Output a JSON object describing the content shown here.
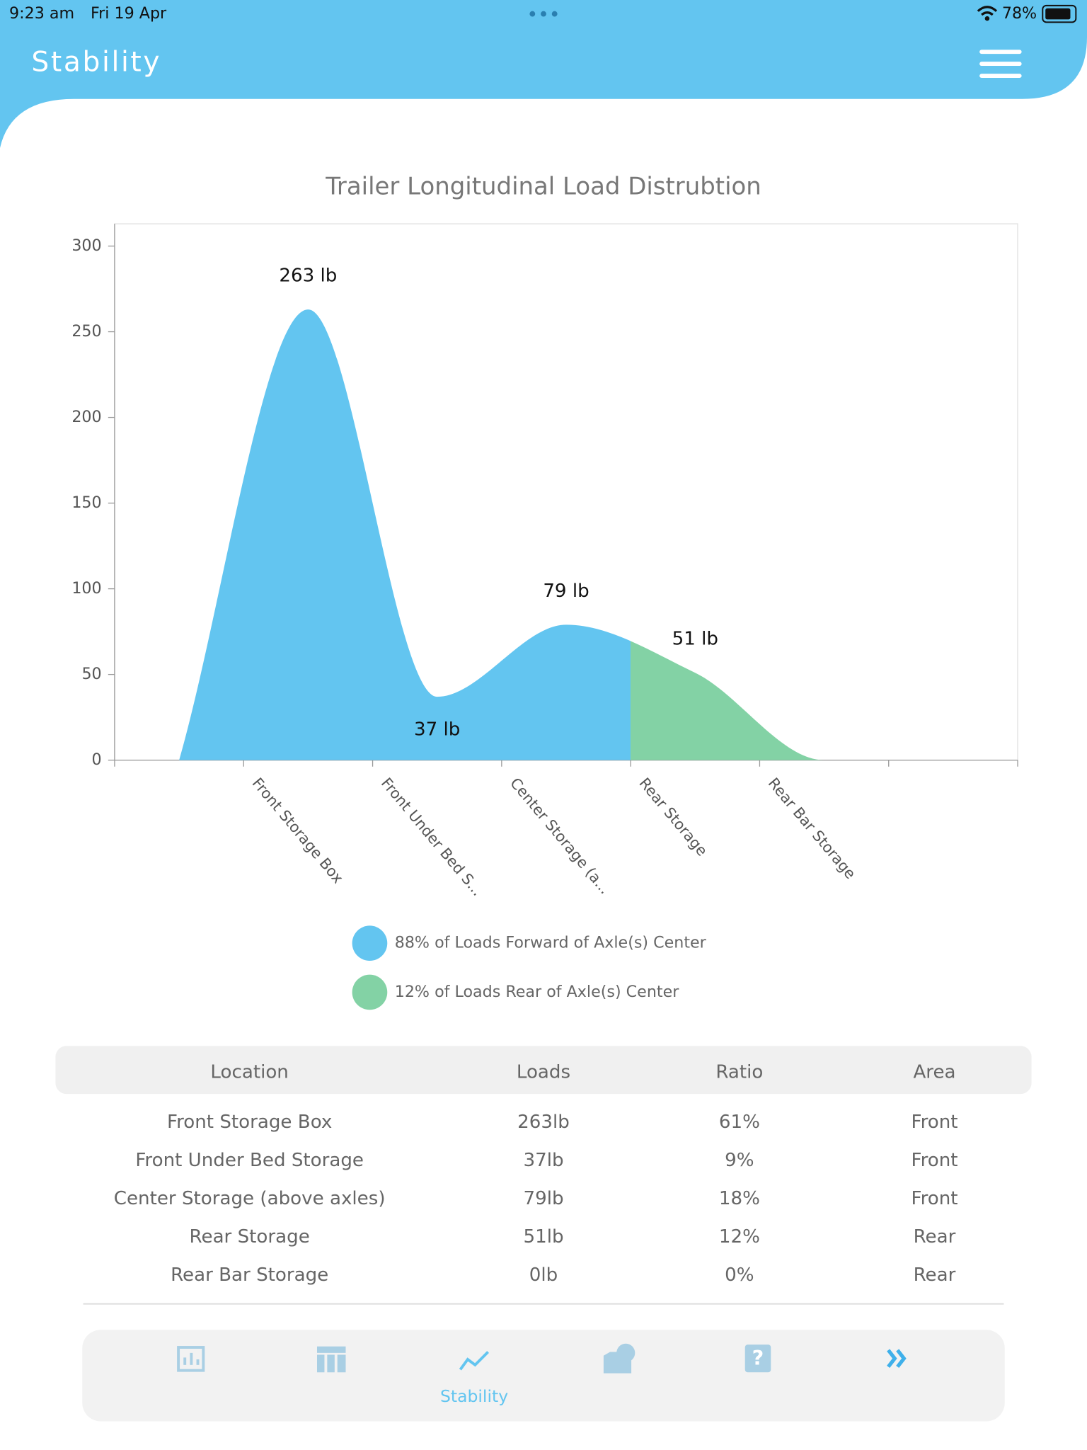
{
  "status_bar": {
    "time": "9:23 am",
    "date": "Fri 19 Apr",
    "battery": "78%"
  },
  "header": {
    "title": "Stability"
  },
  "chart_data": {
    "type": "area",
    "title": "Trailer Longitudinal Load Distrubtion",
    "categories": [
      null,
      "Front Storage Box",
      "Front Under Bed S...",
      "Center Storage (a...",
      "Rear Storage",
      "Rear Bar Storage",
      null
    ],
    "values": [
      null,
      263,
      37,
      79,
      51,
      0,
      null
    ],
    "value_labels": [
      null,
      "263 lb",
      "37 lb",
      "79 lb",
      "51 lb",
      null,
      null
    ],
    "point_colors": [
      null,
      "#63c5f0",
      "#63c5f0",
      "#63c5f0",
      "#83d2a5",
      "#83d2a5",
      null
    ],
    "ylim": [
      0,
      313
    ],
    "yticks": [
      0,
      50,
      100,
      150,
      200,
      250,
      300
    ],
    "legend": [
      {
        "label": "88% of Loads Forward of Axle(s) Center",
        "color": "#63c5f0"
      },
      {
        "label": "12% of Loads Rear of Axle(s) Center",
        "color": "#83d2a5"
      }
    ]
  },
  "table": {
    "columns": [
      "Location",
      "Loads",
      "Ratio",
      "Area"
    ],
    "rows": [
      [
        "Front Storage Box",
        "263lb",
        "61%",
        "Front"
      ],
      [
        "Front Under Bed Storage",
        "37lb",
        "9%",
        "Front"
      ],
      [
        "Center Storage (above axles)",
        "79lb",
        "18%",
        "Front"
      ],
      [
        "Rear Storage",
        "51lb",
        "12%",
        "Rear"
      ],
      [
        "Rear Bar Storage",
        "0lb",
        "0%",
        "Rear"
      ]
    ]
  },
  "tab_bar": {
    "active_label": "Stability"
  }
}
